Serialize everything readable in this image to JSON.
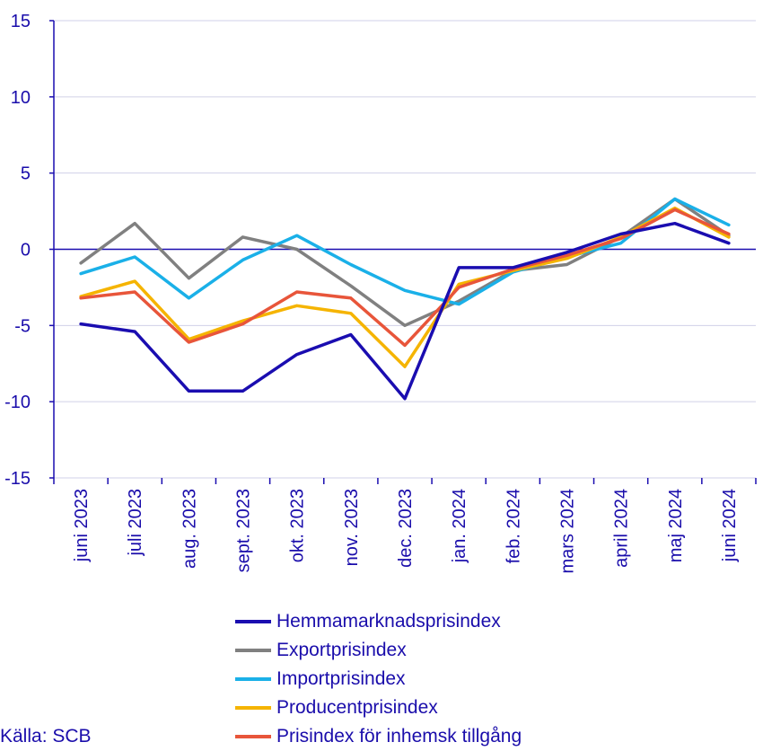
{
  "chart_data": {
    "type": "line",
    "title": "",
    "xlabel": "",
    "ylabel": "",
    "ylim": [
      -15,
      15
    ],
    "yticks": [
      "15",
      "10",
      "5",
      "0",
      "-5",
      "-10",
      "-15"
    ],
    "grid": true,
    "legend_position": "bottom",
    "categories": [
      "juni 2023",
      "juli 2023",
      "aug. 2023",
      "sept. 2023",
      "okt. 2023",
      "nov. 2023",
      "dec. 2023",
      "jan. 2024",
      "feb. 2024",
      "mars 2024",
      "april 2024",
      "maj 2024",
      "juni 2024"
    ],
    "series": [
      {
        "name": "Exportprisindex",
        "color": "#808080",
        "values": [
          -0.9,
          1.7,
          -1.9,
          0.8,
          0.0,
          -2.4,
          -5.0,
          -3.4,
          -1.4,
          -1.0,
          0.8,
          3.3,
          0.9
        ]
      },
      {
        "name": "Importprisindex",
        "color": "#1ab0e8",
        "values": [
          -1.6,
          -0.5,
          -3.2,
          -0.7,
          0.9,
          -1.0,
          -2.7,
          -3.6,
          -1.5,
          -0.5,
          0.4,
          3.3,
          1.6
        ]
      },
      {
        "name": "Producentprisindex",
        "color": "#f5b400",
        "values": [
          -3.1,
          -2.1,
          -5.9,
          -4.7,
          -3.7,
          -4.2,
          -7.7,
          -2.3,
          -1.4,
          -0.6,
          0.8,
          2.7,
          0.8
        ]
      },
      {
        "name": "Prisindex för inhemsk tillgång",
        "color": "#e8553a",
        "values": [
          -3.2,
          -2.8,
          -6.1,
          -4.9,
          -2.8,
          -3.2,
          -6.3,
          -2.5,
          -1.3,
          -0.4,
          0.7,
          2.6,
          1.0
        ]
      },
      {
        "name": "Hemmamarknadsprisindex",
        "color": "#1a0db0",
        "values": [
          -4.9,
          -5.4,
          -9.3,
          -9.3,
          -6.9,
          -5.6,
          -9.8,
          -1.2,
          -1.2,
          -0.2,
          1.0,
          1.7,
          0.4
        ]
      }
    ],
    "legend_order": [
      4,
      0,
      1,
      2,
      3
    ]
  },
  "source": "Källa: SCB"
}
